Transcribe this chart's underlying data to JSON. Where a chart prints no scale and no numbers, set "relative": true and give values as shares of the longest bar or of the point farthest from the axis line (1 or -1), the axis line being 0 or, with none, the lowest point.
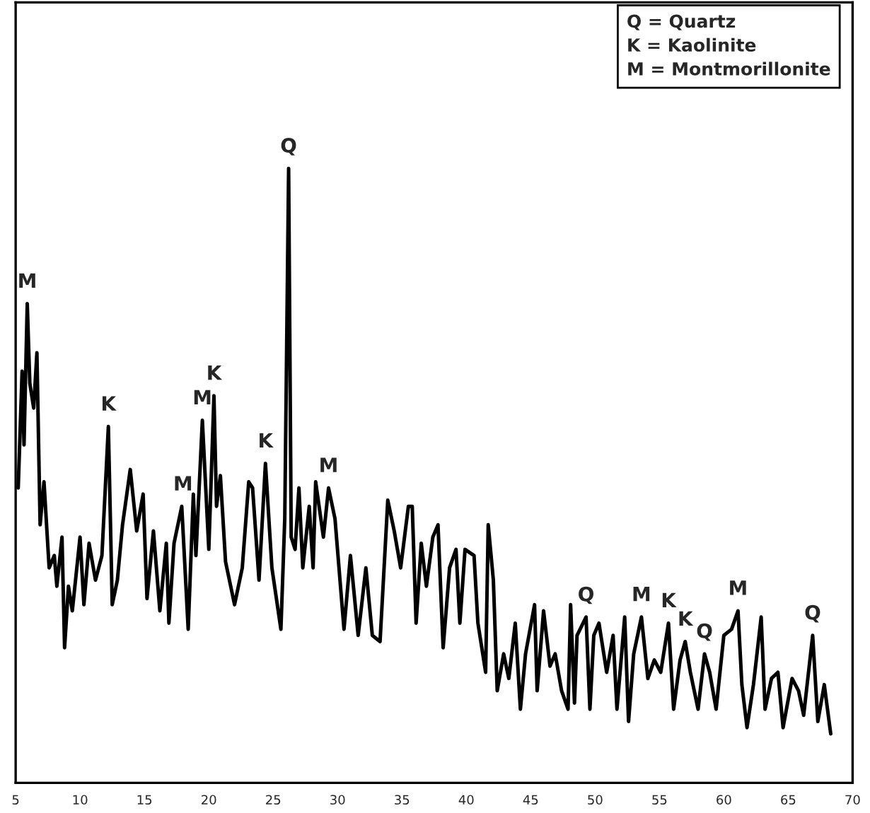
{
  "chart_data": {
    "type": "line",
    "relative": true,
    "xlim": [
      5,
      70
    ],
    "xticks": [
      5,
      10,
      15,
      20,
      25,
      30,
      35,
      40,
      45,
      50,
      55,
      60,
      65,
      70
    ],
    "grid": false,
    "legend": false,
    "marker": "none",
    "line_style": "solid",
    "series": [
      {
        "color": "#000000",
        "x": [
          5.2,
          5.5,
          5.65,
          5.9,
          6.1,
          6.4,
          6.65,
          6.9,
          7.2,
          7.6,
          8.0,
          8.2,
          8.6,
          8.8,
          9.1,
          9.4,
          10.0,
          10.3,
          10.7,
          11.2,
          11.7,
          12.2,
          12.5,
          12.9,
          13.3,
          13.9,
          14.4,
          14.9,
          15.2,
          15.7,
          16.2,
          16.7,
          16.9,
          17.3,
          17.9,
          18.4,
          18.8,
          19.0,
          19.5,
          20.0,
          20.4,
          20.6,
          20.9,
          21.3,
          22.0,
          22.6,
          23.1,
          23.4,
          23.9,
          24.4,
          24.9,
          25.6,
          25.9,
          26.2,
          26.4,
          26.7,
          27.0,
          27.3,
          27.8,
          28.1,
          28.3,
          28.9,
          29.3,
          29.8,
          30.5,
          31.0,
          31.6,
          32.2,
          32.7,
          33.3,
          33.9,
          34.4,
          34.9,
          35.5,
          35.8,
          36.1,
          36.5,
          36.9,
          37.4,
          37.8,
          38.2,
          38.7,
          39.2,
          39.5,
          39.9,
          40.6,
          40.9,
          41.5,
          41.7,
          42.1,
          42.4,
          42.9,
          43.3,
          43.8,
          44.2,
          44.6,
          45.3,
          45.5,
          46.0,
          46.5,
          46.9,
          47.4,
          47.9,
          48.1,
          48.4,
          48.6,
          49.3,
          49.6,
          49.9,
          50.3,
          50.9,
          51.4,
          51.7,
          52.3,
          52.6,
          53.0,
          53.6,
          54.1,
          54.6,
          55.1,
          55.7,
          56.1,
          56.6,
          57.0,
          57.4,
          58.0,
          58.5,
          58.9,
          59.4,
          60.0,
          60.6,
          61.1,
          61.4,
          61.8,
          62.3,
          62.9,
          63.2,
          63.7,
          64.2,
          64.6,
          65.3,
          65.8,
          66.2,
          66.9,
          67.3,
          67.8,
          68.3
        ],
        "values": [
          0.48,
          0.67,
          0.55,
          0.78,
          0.65,
          0.61,
          0.7,
          0.42,
          0.49,
          0.35,
          0.37,
          0.32,
          0.4,
          0.22,
          0.32,
          0.28,
          0.4,
          0.29,
          0.39,
          0.33,
          0.37,
          0.58,
          0.29,
          0.33,
          0.42,
          0.51,
          0.41,
          0.47,
          0.3,
          0.41,
          0.28,
          0.39,
          0.26,
          0.39,
          0.45,
          0.25,
          0.47,
          0.37,
          0.59,
          0.38,
          0.63,
          0.45,
          0.5,
          0.36,
          0.29,
          0.35,
          0.49,
          0.48,
          0.33,
          0.52,
          0.35,
          0.25,
          0.43,
          1.0,
          0.4,
          0.38,
          0.48,
          0.35,
          0.45,
          0.35,
          0.49,
          0.4,
          0.48,
          0.43,
          0.25,
          0.37,
          0.24,
          0.35,
          0.24,
          0.23,
          0.46,
          0.41,
          0.35,
          0.45,
          0.45,
          0.26,
          0.39,
          0.32,
          0.4,
          0.42,
          0.22,
          0.35,
          0.38,
          0.26,
          0.38,
          0.37,
          0.26,
          0.18,
          0.42,
          0.33,
          0.15,
          0.21,
          0.17,
          0.26,
          0.12,
          0.21,
          0.29,
          0.15,
          0.28,
          0.19,
          0.21,
          0.15,
          0.12,
          0.29,
          0.13,
          0.24,
          0.27,
          0.12,
          0.24,
          0.26,
          0.18,
          0.24,
          0.12,
          0.27,
          0.1,
          0.21,
          0.27,
          0.17,
          0.2,
          0.18,
          0.26,
          0.12,
          0.2,
          0.23,
          0.18,
          0.12,
          0.21,
          0.18,
          0.12,
          0.24,
          0.25,
          0.28,
          0.16,
          0.09,
          0.16,
          0.27,
          0.12,
          0.17,
          0.18,
          0.09,
          0.17,
          0.15,
          0.11,
          0.24,
          0.1,
          0.16,
          0.08
        ]
      }
    ],
    "annotations": [
      "Q = Quartz",
      "K = Kaolinite",
      "M = Montmorillonite",
      {
        "text": "M",
        "x": 5.9,
        "y": 0.78
      },
      {
        "text": "K",
        "x": 12.2,
        "y": 0.58
      },
      {
        "text": "M",
        "x": 18.0,
        "y": 0.45
      },
      {
        "text": "M",
        "x": 19.5,
        "y": 0.59
      },
      {
        "text": "K",
        "x": 20.4,
        "y": 0.63
      },
      {
        "text": "K",
        "x": 24.4,
        "y": 0.52
      },
      {
        "text": "Q",
        "x": 26.2,
        "y": 1.0
      },
      {
        "text": "M",
        "x": 29.3,
        "y": 0.48
      },
      {
        "text": "Q",
        "x": 49.3,
        "y": 0.27
      },
      {
        "text": "M",
        "x": 53.6,
        "y": 0.27
      },
      {
        "text": "K",
        "x": 55.7,
        "y": 0.26
      },
      {
        "text": "K",
        "x": 57.0,
        "y": 0.23
      },
      {
        "text": "Q",
        "x": 58.5,
        "y": 0.21
      },
      {
        "text": "M",
        "x": 61.1,
        "y": 0.28
      },
      {
        "text": "Q",
        "x": 66.9,
        "y": 0.24
      }
    ]
  }
}
